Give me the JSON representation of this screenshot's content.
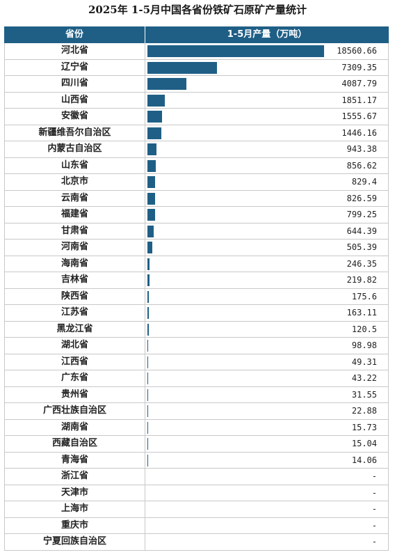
{
  "title": "2025年 1-5月中国各省份铁矿石原矿产量统计",
  "header": {
    "col1": "省份",
    "col2": "1-5月产量（万吨）"
  },
  "colors": {
    "header_bg": "#1f5f86",
    "bar": "#1f5f86"
  },
  "chart_data": {
    "type": "table",
    "title": "2025年 1-5月中国各省份铁矿石原矿产量统计",
    "columns": [
      "省份",
      "1-5月产量（万吨）"
    ],
    "rows": [
      {
        "name": "河北省",
        "value": 18560.66,
        "label": "18560.66"
      },
      {
        "name": "辽宁省",
        "value": 7309.35,
        "label": "7309.35"
      },
      {
        "name": "四川省",
        "value": 4087.79,
        "label": "4087.79"
      },
      {
        "name": "山西省",
        "value": 1851.17,
        "label": "1851.17"
      },
      {
        "name": "安徽省",
        "value": 1555.67,
        "label": "1555.67"
      },
      {
        "name": "新疆维吾尔自治区",
        "value": 1446.16,
        "label": "1446.16"
      },
      {
        "name": "内蒙古自治区",
        "value": 943.38,
        "label": "943.38"
      },
      {
        "name": "山东省",
        "value": 856.62,
        "label": "856.62"
      },
      {
        "name": "北京市",
        "value": 829.4,
        "label": "829.4"
      },
      {
        "name": "云南省",
        "value": 826.59,
        "label": "826.59"
      },
      {
        "name": "福建省",
        "value": 799.25,
        "label": "799.25"
      },
      {
        "name": "甘肃省",
        "value": 644.39,
        "label": "644.39"
      },
      {
        "name": "河南省",
        "value": 505.39,
        "label": "505.39"
      },
      {
        "name": "海南省",
        "value": 246.35,
        "label": "246.35"
      },
      {
        "name": "吉林省",
        "value": 219.82,
        "label": "219.82"
      },
      {
        "name": "陕西省",
        "value": 175.6,
        "label": "175.6"
      },
      {
        "name": "江苏省",
        "value": 163.11,
        "label": "163.11"
      },
      {
        "name": "黑龙江省",
        "value": 120.5,
        "label": "120.5"
      },
      {
        "name": "湖北省",
        "value": 98.98,
        "label": "98.98"
      },
      {
        "name": "江西省",
        "value": 49.31,
        "label": "49.31"
      },
      {
        "name": "广东省",
        "value": 43.22,
        "label": "43.22"
      },
      {
        "name": "贵州省",
        "value": 31.55,
        "label": "31.55"
      },
      {
        "name": "广西壮族自治区",
        "value": 22.88,
        "label": "22.88"
      },
      {
        "name": "湖南省",
        "value": 15.73,
        "label": "15.73"
      },
      {
        "name": "西藏自治区",
        "value": 15.04,
        "label": "15.04"
      },
      {
        "name": "青海省",
        "value": 14.06,
        "label": "14.06"
      },
      {
        "name": "浙江省",
        "value": null,
        "label": "-"
      },
      {
        "name": "天津市",
        "value": null,
        "label": "-"
      },
      {
        "name": "上海市",
        "value": null,
        "label": "-"
      },
      {
        "name": "重庆市",
        "value": null,
        "label": "-"
      },
      {
        "name": "宁夏回族自治区",
        "value": null,
        "label": "-"
      }
    ]
  }
}
